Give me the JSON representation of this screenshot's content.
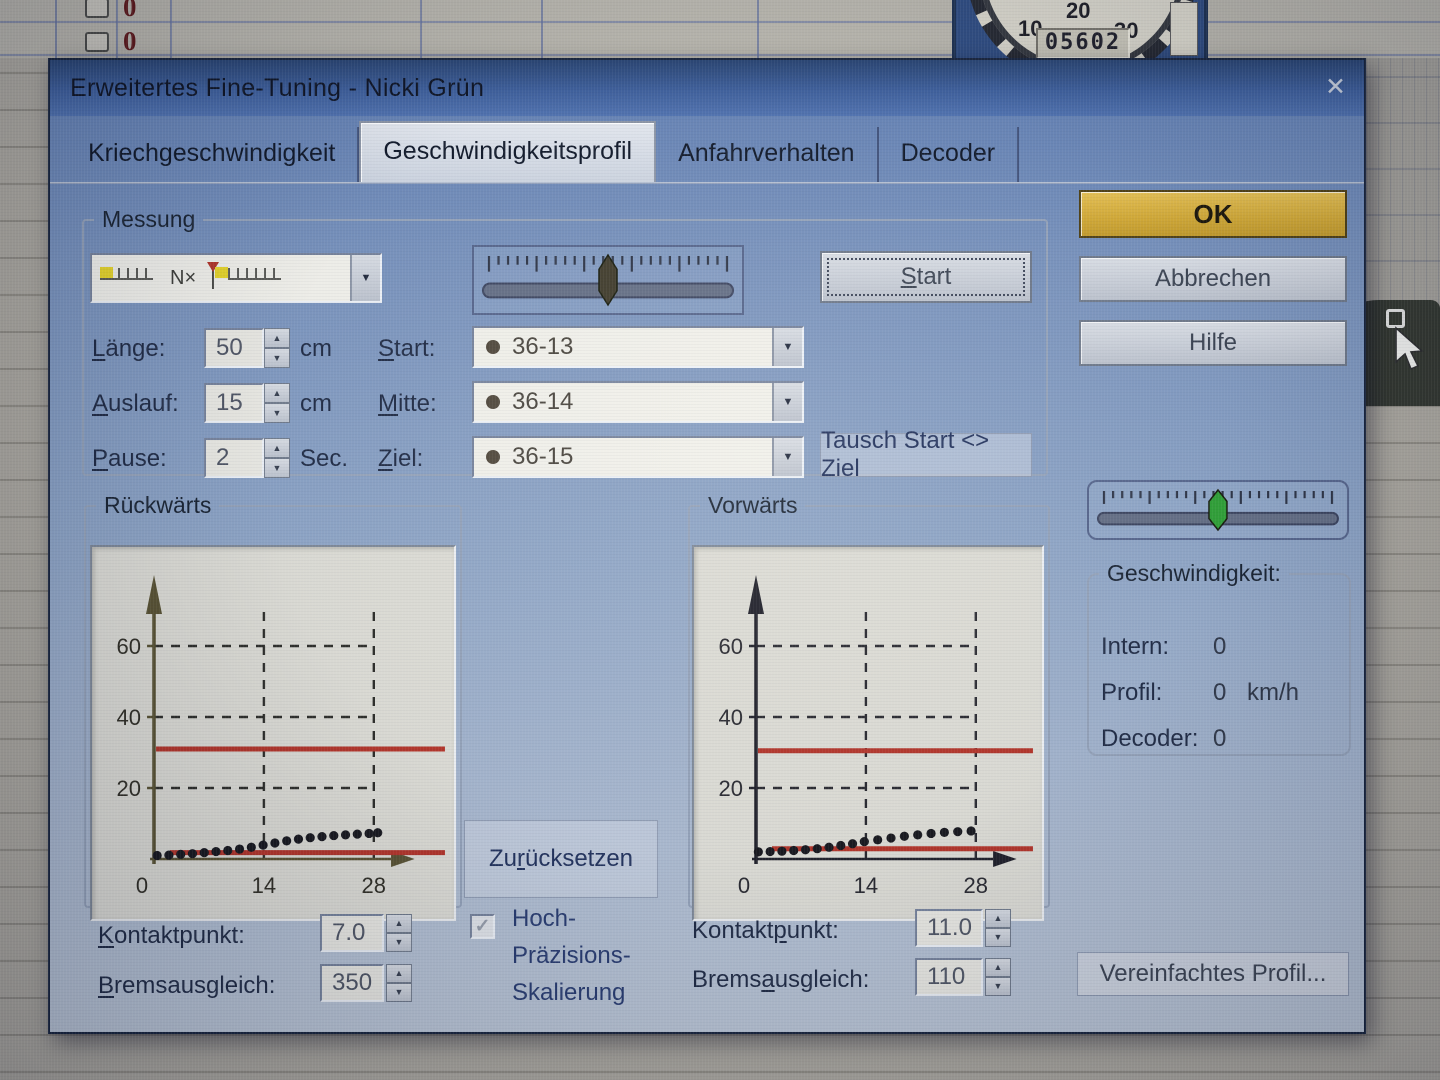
{
  "window": {
    "title": "Erweitertes Fine-Tuning - Nicki Grün"
  },
  "icons": {
    "dropdown_arrow": "▼",
    "spin_up": "▲",
    "spin_down": "▼",
    "close": "✕",
    "check": "✓",
    "n_times": "N×"
  },
  "tabs": [
    {
      "label": "Kriechgeschwindigkeit"
    },
    {
      "label": "Geschwindigkeitsprofil"
    },
    {
      "label": "Anfahrverhalten"
    },
    {
      "label": "Decoder"
    }
  ],
  "messung": {
    "title": "Messung",
    "start_button": "<u>S</u>tart",
    "laenge_label": "<u>L</u>änge:",
    "laenge_value": "50",
    "laenge_unit": "cm",
    "auslauf_label": "<u>A</u>uslauf:",
    "auslauf_value": "15",
    "auslauf_unit": "cm",
    "pause_label": "<u>P</u>ause:",
    "pause_value": "2",
    "pause_unit": "Sec.",
    "start_label": "<u>S</u>tart:",
    "start_value": "36-13",
    "mitte_label": "<u>M</u>itte:",
    "mitte_value": "36-14",
    "ziel_label": "<u>Z</u>iel:",
    "ziel_value": "36-15",
    "swap_button": "Tausch Start <> Ziel"
  },
  "action_buttons": {
    "ok": "OK",
    "cancel": "Abbrechen",
    "help": "Hilfe"
  },
  "sliders": {
    "measure_handle_color": "#3d3827",
    "speed_handle_color": "#2d9e33"
  },
  "speed": {
    "title": "Geschwindigkeit:",
    "intern_label": "Intern:",
    "intern_value": "0",
    "profil_label": "Profil:",
    "profil_value": "0",
    "profil_unit": "km/h",
    "decoder_label": "Decoder:",
    "decoder_value": "0"
  },
  "bottom": {
    "reset_button": "Zu<u>r</u>ücksetzen",
    "precision_lines": [
      "Hoch-",
      "Präzisions-",
      "Skalierung"
    ],
    "left_kontakt_label": "<u>K</u>ontaktpunkt:",
    "left_kontakt_value": "7.0",
    "left_brems_label": "<u>B</u>remsausgleich:",
    "left_brems_value": "350",
    "right_kontakt_label": "Kontakt<u>p</u>unkt:",
    "right_kontakt_value": "11.0",
    "right_brems_label": "Brems<u>a</u>usgleich:",
    "right_brems_value": "110",
    "simplified_button": "Vereinfachtes Profil..."
  },
  "chart_data": [
    {
      "type": "scatter",
      "title": "Rückwärts",
      "xlabel": "",
      "ylabel": "",
      "x_ticks": [
        0,
        14,
        28
      ],
      "y_ticks": [
        20,
        40,
        60
      ],
      "xlim": [
        0,
        33
      ],
      "ylim": [
        0,
        80
      ],
      "grid": "dashed",
      "points": {
        "x": [
          0.4,
          1.9,
          3.4,
          4.9,
          6.4,
          7.9,
          9.4,
          10.9,
          12.4,
          13.9,
          15.4,
          16.9,
          18.4,
          19.9,
          21.4,
          22.9,
          24.4,
          25.9,
          27.4,
          28.5
        ],
        "y": [
          1.0,
          1.1,
          1.3,
          1.5,
          1.8,
          2.1,
          2.4,
          2.8,
          3.3,
          3.9,
          4.5,
          5.1,
          5.6,
          6.0,
          6.3,
          6.6,
          6.8,
          7.0,
          7.2,
          7.4
        ]
      },
      "red_line_y": 31,
      "red_baseline_y": 1.8,
      "axis_color": "#57502f",
      "grid_color": "#2b2b26",
      "text_color": "#2e2c22",
      "red_color": "#b23226",
      "dot_color": "#15151a"
    },
    {
      "type": "scatter",
      "title": "Vorwärts",
      "xlabel": "",
      "ylabel": "",
      "x_ticks": [
        0,
        14,
        28
      ],
      "y_ticks": [
        20,
        40,
        60
      ],
      "xlim": [
        0,
        33
      ],
      "ylim": [
        0,
        80
      ],
      "grid": "dashed",
      "points": {
        "x": [
          0.3,
          1.8,
          3.3,
          4.8,
          6.3,
          7.8,
          9.3,
          10.8,
          12.3,
          13.8,
          15.5,
          17.2,
          18.9,
          20.6,
          22.3,
          24.0,
          25.7,
          27.4
        ],
        "y": [
          2.0,
          2.1,
          2.2,
          2.4,
          2.6,
          2.9,
          3.3,
          3.8,
          4.3,
          4.9,
          5.4,
          5.9,
          6.4,
          6.8,
          7.2,
          7.5,
          7.7,
          7.9
        ]
      },
      "red_line_y": 30.5,
      "red_baseline_y": 2.9,
      "axis_color": "#1d1d26",
      "grid_color": "#26262c",
      "text_color": "#26262c",
      "red_color": "#b23226",
      "dot_color": "#15151a"
    }
  ],
  "background": {
    "cells": [
      "0",
      "0"
    ],
    "gauge": {
      "labels": [
        "10",
        "20",
        "30"
      ],
      "odometer": "05602"
    }
  }
}
